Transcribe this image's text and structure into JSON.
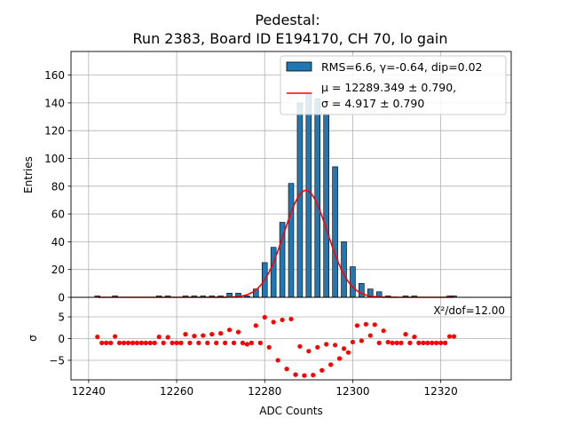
{
  "chart_data": {
    "type": "bar",
    "title": "Pedestal:",
    "subtitle": "Run 2383, Board ID E194170, CH 70, lo gain",
    "xlabel": "ADC Counts",
    "ylabel": "Entries",
    "ylabel_residual": "σ",
    "xlim": [
      12236,
      12336
    ],
    "ylim": [
      0,
      177
    ],
    "ylim_residual": [
      -9.5,
      9.5
    ],
    "xticks": [
      "12240",
      "12260",
      "12280",
      "12300",
      "12320"
    ],
    "yticks": [
      "0",
      "20",
      "40",
      "60",
      "80",
      "100",
      "120",
      "140",
      "160"
    ],
    "yticks_residual": [
      "5",
      "0",
      "−5"
    ],
    "grid": true,
    "legend_position": "top-right",
    "colors": {
      "bars": "#1f77b4",
      "fit": "#ff0000",
      "residuals": "#ff0000"
    },
    "histogram": {
      "name": "RMS=6.6, γ=-0.64, dip=0.02",
      "x": [
        12242,
        12243,
        12244,
        12245,
        12246,
        12247,
        12248,
        12249,
        12250,
        12251,
        12252,
        12253,
        12254,
        12255,
        12256,
        12257,
        12258,
        12259,
        12260,
        12261,
        12262,
        12263,
        12264,
        12265,
        12266,
        12267,
        12268,
        12269,
        12270,
        12271,
        12272,
        12273,
        12274,
        12275,
        12276,
        12277,
        12278,
        12279,
        12280,
        12281,
        12282,
        12283,
        12284,
        12285,
        12286,
        12287,
        12288,
        12289,
        12290,
        12291,
        12292,
        12293,
        12294,
        12295,
        12296,
        12297,
        12298,
        12299,
        12300,
        12301,
        12302,
        12303,
        12304,
        12305,
        12306,
        12307,
        12308,
        12309,
        12310,
        12311,
        12312,
        12313,
        12314,
        12315,
        12316,
        12317,
        12318,
        12319,
        12320,
        12321,
        12322,
        12323
      ],
      "values": [
        1,
        0,
        0,
        0,
        1,
        0,
        0,
        0,
        0,
        0,
        0,
        0,
        0,
        0,
        1,
        0,
        1,
        0,
        0,
        0,
        1,
        0,
        1,
        0,
        1,
        0,
        1,
        0,
        1,
        0,
        3,
        0,
        3,
        0,
        1,
        0,
        6,
        0,
        25,
        0,
        36,
        0,
        54,
        0,
        82,
        0,
        140,
        0,
        146,
        0,
        143,
        0,
        132,
        0,
        94,
        0,
        40,
        0,
        22,
        0,
        10,
        0,
        6,
        0,
        4,
        0,
        1,
        0,
        0,
        0,
        1,
        0,
        1,
        0,
        0,
        0,
        0,
        0,
        0,
        0,
        1,
        1
      ]
    },
    "fit": {
      "name": "μ = 12289.349 ± 0.790,",
      "name_line2": "σ = 4.917 ± 0.790",
      "mu": 12289.349,
      "sigma": 4.917,
      "amplitude": 77
    },
    "residuals": {
      "x": [
        12242,
        12243,
        12244,
        12245,
        12246,
        12247,
        12248,
        12249,
        12250,
        12251,
        12252,
        12253,
        12254,
        12255,
        12256,
        12257,
        12258,
        12259,
        12260,
        12261,
        12262,
        12263,
        12264,
        12265,
        12266,
        12267,
        12268,
        12269,
        12270,
        12271,
        12272,
        12273,
        12274,
        12275,
        12276,
        12277,
        12278,
        12279,
        12280,
        12281,
        12282,
        12283,
        12284,
        12285,
        12286,
        12287,
        12288,
        12289,
        12290,
        12291,
        12292,
        12293,
        12294,
        12295,
        12296,
        12297,
        12298,
        12299,
        12300,
        12301,
        12302,
        12303,
        12304,
        12305,
        12306,
        12307,
        12308,
        12309,
        12310,
        12311,
        12312,
        12313,
        12314,
        12315,
        12316,
        12317,
        12318,
        12319,
        12320,
        12321,
        12322,
        12323
      ],
      "values": [
        0.4,
        -1,
        -1,
        -1,
        0.5,
        -1,
        -1,
        -1,
        -1,
        -1,
        -1,
        -1,
        -1,
        -1,
        0.4,
        -1,
        0.3,
        -1,
        -1,
        -1,
        1,
        -1,
        0.6,
        -1,
        0.7,
        -1,
        1,
        -1,
        1.2,
        -1,
        2,
        -1,
        1.5,
        -1,
        -1.3,
        -1,
        3,
        -1,
        4.9,
        -2,
        3.8,
        -5,
        4.3,
        -7,
        4.5,
        -8.3,
        -1.8,
        -8.5,
        -2.9,
        -8.4,
        -2,
        -7.3,
        -1.3,
        -6,
        -1.5,
        -4.6,
        -2.3,
        -3.2,
        -0.8,
        3,
        -0.5,
        3.3,
        0.7,
        3.2,
        -1,
        1.8,
        -0.8,
        -1,
        -1,
        -1,
        1,
        -1,
        0.4,
        -1,
        -1,
        -1,
        -1,
        -1,
        -1,
        -1,
        0.5,
        0.5
      ]
    },
    "annotation": "X²/dof=12.00"
  }
}
